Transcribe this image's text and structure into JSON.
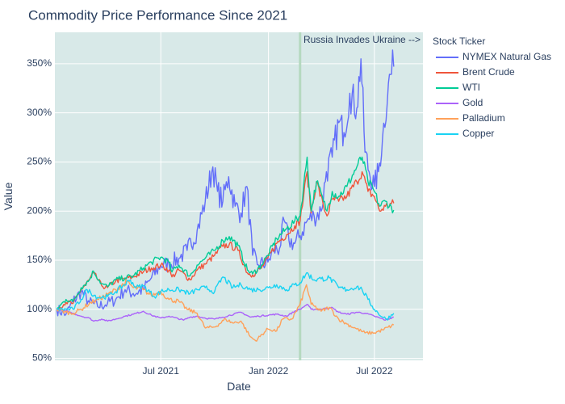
{
  "chart_data": {
    "type": "line",
    "title": "Commodity Price Performance Since 2021",
    "xlabel": "Date",
    "ylabel": "Value",
    "x_range": [
      "2021-01-01",
      "2022-09-22"
    ],
    "ylim": [
      0.48,
      3.82
    ],
    "x_ticks": [
      {
        "date": "2021-07-01",
        "label": "Jul 2021"
      },
      {
        "date": "2022-01-01",
        "label": "Jan 2022"
      },
      {
        "date": "2022-07-01",
        "label": "Jul 2022"
      }
    ],
    "y_ticks": [
      {
        "value": 0.5,
        "label": "50%"
      },
      {
        "value": 1.0,
        "label": "100%"
      },
      {
        "value": 1.5,
        "label": "150%"
      },
      {
        "value": 2.0,
        "label": "200%"
      },
      {
        "value": 2.5,
        "label": "250%"
      },
      {
        "value": 3.0,
        "label": "300%"
      },
      {
        "value": 3.5,
        "label": "350%"
      }
    ],
    "grid": true,
    "plot_background": "#d8e9e8",
    "legend": {
      "title": "Stock Ticker",
      "placement": "right"
    },
    "annotation": {
      "date": "2022-02-24",
      "text": "Russia Invades Ukraine  -->",
      "line_color": "#b5d9bf"
    },
    "series": [
      {
        "name": "NYMEX Natural Gas",
        "color": "#636efa",
        "points": [
          [
            "2021-01-04",
            1.0
          ],
          [
            "2021-01-20",
            0.95
          ],
          [
            "2021-02-01",
            1.08
          ],
          [
            "2021-02-15",
            1.18
          ],
          [
            "2021-03-01",
            1.07
          ],
          [
            "2021-03-15",
            1.03
          ],
          [
            "2021-04-01",
            1.06
          ],
          [
            "2021-04-15",
            1.1
          ],
          [
            "2021-05-01",
            1.2
          ],
          [
            "2021-05-15",
            1.16
          ],
          [
            "2021-06-01",
            1.2
          ],
          [
            "2021-06-15",
            1.32
          ],
          [
            "2021-07-01",
            1.45
          ],
          [
            "2021-07-15",
            1.46
          ],
          [
            "2021-08-01",
            1.52
          ],
          [
            "2021-08-15",
            1.6
          ],
          [
            "2021-09-01",
            1.8
          ],
          [
            "2021-09-15",
            2.1
          ],
          [
            "2021-09-28",
            2.45
          ],
          [
            "2021-10-06",
            2.2
          ],
          [
            "2021-10-15",
            2.1
          ],
          [
            "2021-10-25",
            2.35
          ],
          [
            "2021-11-05",
            2.05
          ],
          [
            "2021-11-15",
            1.98
          ],
          [
            "2021-11-25",
            2.25
          ],
          [
            "2021-12-05",
            1.55
          ],
          [
            "2021-12-15",
            1.45
          ],
          [
            "2021-12-31",
            1.48
          ],
          [
            "2022-01-10",
            1.6
          ],
          [
            "2022-01-20",
            1.62
          ],
          [
            "2022-01-28",
            1.9
          ],
          [
            "2022-02-05",
            1.7
          ],
          [
            "2022-02-15",
            1.67
          ],
          [
            "2022-02-24",
            1.75
          ],
          [
            "2022-03-08",
            1.9
          ],
          [
            "2022-03-20",
            1.95
          ],
          [
            "2022-04-01",
            2.0
          ],
          [
            "2022-04-10",
            2.4
          ],
          [
            "2022-04-20",
            2.55
          ],
          [
            "2022-05-01",
            2.9
          ],
          [
            "2022-05-10",
            2.8
          ],
          [
            "2022-05-20",
            3.2
          ],
          [
            "2022-06-01",
            3.05
          ],
          [
            "2022-06-08",
            3.55
          ],
          [
            "2022-06-15",
            2.6
          ],
          [
            "2022-06-22",
            2.4
          ],
          [
            "2022-07-01",
            2.25
          ],
          [
            "2022-07-08",
            2.4
          ],
          [
            "2022-07-15",
            2.75
          ],
          [
            "2022-07-25",
            3.3
          ],
          [
            "2022-08-03",
            3.47
          ]
        ]
      },
      {
        "name": "Brent Crude",
        "color": "#ef553b",
        "points": [
          [
            "2021-01-04",
            1.0
          ],
          [
            "2021-01-20",
            1.07
          ],
          [
            "2021-02-01",
            1.06
          ],
          [
            "2021-02-15",
            1.2
          ],
          [
            "2021-03-01",
            1.3
          ],
          [
            "2021-03-08",
            1.37
          ],
          [
            "2021-03-22",
            1.24
          ],
          [
            "2021-04-01",
            1.22
          ],
          [
            "2021-04-15",
            1.29
          ],
          [
            "2021-05-01",
            1.31
          ],
          [
            "2021-05-15",
            1.33
          ],
          [
            "2021-06-01",
            1.38
          ],
          [
            "2021-06-15",
            1.42
          ],
          [
            "2021-07-01",
            1.45
          ],
          [
            "2021-07-15",
            1.4
          ],
          [
            "2021-07-20",
            1.33
          ],
          [
            "2021-08-01",
            1.4
          ],
          [
            "2021-08-20",
            1.3
          ],
          [
            "2021-09-01",
            1.4
          ],
          [
            "2021-09-15",
            1.46
          ],
          [
            "2021-10-01",
            1.55
          ],
          [
            "2021-10-15",
            1.64
          ],
          [
            "2021-10-26",
            1.66
          ],
          [
            "2021-11-10",
            1.6
          ],
          [
            "2021-11-26",
            1.37
          ],
          [
            "2021-12-05",
            1.35
          ],
          [
            "2021-12-20",
            1.42
          ],
          [
            "2021-12-31",
            1.52
          ],
          [
            "2022-01-15",
            1.67
          ],
          [
            "2022-02-01",
            1.76
          ],
          [
            "2022-02-15",
            1.85
          ],
          [
            "2022-02-24",
            1.9
          ],
          [
            "2022-03-08",
            2.4
          ],
          [
            "2022-03-15",
            1.98
          ],
          [
            "2022-03-24",
            2.3
          ],
          [
            "2022-04-05",
            2.05
          ],
          [
            "2022-04-11",
            1.95
          ],
          [
            "2022-04-20",
            2.12
          ],
          [
            "2022-05-01",
            2.1
          ],
          [
            "2022-05-15",
            2.15
          ],
          [
            "2022-06-01",
            2.3
          ],
          [
            "2022-06-10",
            2.4
          ],
          [
            "2022-06-20",
            2.2
          ],
          [
            "2022-07-01",
            2.15
          ],
          [
            "2022-07-10",
            2.0
          ],
          [
            "2022-07-20",
            2.05
          ],
          [
            "2022-08-03",
            2.08
          ]
        ]
      },
      {
        "name": "WTI",
        "color": "#00cc96",
        "points": [
          [
            "2021-01-04",
            1.0
          ],
          [
            "2021-01-20",
            1.1
          ],
          [
            "2021-02-01",
            1.08
          ],
          [
            "2021-02-15",
            1.22
          ],
          [
            "2021-03-01",
            1.3
          ],
          [
            "2021-03-08",
            1.39
          ],
          [
            "2021-03-22",
            1.26
          ],
          [
            "2021-04-01",
            1.23
          ],
          [
            "2021-04-15",
            1.3
          ],
          [
            "2021-05-01",
            1.32
          ],
          [
            "2021-05-15",
            1.34
          ],
          [
            "2021-06-01",
            1.42
          ],
          [
            "2021-06-15",
            1.48
          ],
          [
            "2021-07-01",
            1.53
          ],
          [
            "2021-07-15",
            1.48
          ],
          [
            "2021-07-20",
            1.38
          ],
          [
            "2021-08-01",
            1.45
          ],
          [
            "2021-08-20",
            1.34
          ],
          [
            "2021-09-01",
            1.45
          ],
          [
            "2021-09-15",
            1.52
          ],
          [
            "2021-10-01",
            1.6
          ],
          [
            "2021-10-15",
            1.7
          ],
          [
            "2021-10-26",
            1.74
          ],
          [
            "2021-11-10",
            1.65
          ],
          [
            "2021-11-26",
            1.4
          ],
          [
            "2021-12-05",
            1.36
          ],
          [
            "2021-12-20",
            1.45
          ],
          [
            "2021-12-31",
            1.55
          ],
          [
            "2022-01-15",
            1.72
          ],
          [
            "2022-02-01",
            1.82
          ],
          [
            "2022-02-15",
            1.9
          ],
          [
            "2022-02-24",
            1.95
          ],
          [
            "2022-03-08",
            2.55
          ],
          [
            "2022-03-15",
            2.0
          ],
          [
            "2022-03-24",
            2.3
          ],
          [
            "2022-04-05",
            2.1
          ],
          [
            "2022-04-11",
            2.0
          ],
          [
            "2022-04-20",
            2.2
          ],
          [
            "2022-05-01",
            2.15
          ],
          [
            "2022-05-15",
            2.25
          ],
          [
            "2022-06-01",
            2.45
          ],
          [
            "2022-06-10",
            2.55
          ],
          [
            "2022-06-20",
            2.3
          ],
          [
            "2022-07-01",
            2.2
          ],
          [
            "2022-07-10",
            2.05
          ],
          [
            "2022-07-20",
            2.1
          ],
          [
            "2022-08-03",
            2.01
          ]
        ]
      },
      {
        "name": "Gold",
        "color": "#ab63fa",
        "points": [
          [
            "2021-01-04",
            1.0
          ],
          [
            "2021-01-20",
            0.98
          ],
          [
            "2021-02-01",
            0.96
          ],
          [
            "2021-02-15",
            0.93
          ],
          [
            "2021-03-01",
            0.91
          ],
          [
            "2021-03-08",
            0.88
          ],
          [
            "2021-03-22",
            0.9
          ],
          [
            "2021-04-01",
            0.88
          ],
          [
            "2021-04-15",
            0.9
          ],
          [
            "2021-05-01",
            0.93
          ],
          [
            "2021-05-15",
            0.95
          ],
          [
            "2021-06-01",
            0.98
          ],
          [
            "2021-06-15",
            0.94
          ],
          [
            "2021-07-01",
            0.91
          ],
          [
            "2021-07-15",
            0.93
          ],
          [
            "2021-08-09",
            0.89
          ],
          [
            "2021-08-20",
            0.92
          ],
          [
            "2021-09-01",
            0.93
          ],
          [
            "2021-09-15",
            0.91
          ],
          [
            "2021-10-01",
            0.9
          ],
          [
            "2021-10-15",
            0.92
          ],
          [
            "2021-11-15",
            0.97
          ],
          [
            "2021-12-01",
            0.92
          ],
          [
            "2021-12-15",
            0.93
          ],
          [
            "2022-01-15",
            0.95
          ],
          [
            "2022-02-01",
            0.93
          ],
          [
            "2022-02-15",
            0.98
          ],
          [
            "2022-02-24",
            1.0
          ],
          [
            "2022-03-08",
            1.05
          ],
          [
            "2022-03-15",
            1.0
          ],
          [
            "2022-04-01",
            1.0
          ],
          [
            "2022-04-18",
            1.02
          ],
          [
            "2022-05-01",
            0.97
          ],
          [
            "2022-05-15",
            0.95
          ],
          [
            "2022-06-01",
            0.97
          ],
          [
            "2022-06-15",
            0.96
          ],
          [
            "2022-07-01",
            0.93
          ],
          [
            "2022-07-20",
            0.89
          ],
          [
            "2022-08-03",
            0.92
          ]
        ]
      },
      {
        "name": "Palladium",
        "color": "#ffa15a",
        "points": [
          [
            "2021-01-04",
            1.0
          ],
          [
            "2021-01-20",
            0.97
          ],
          [
            "2021-02-01",
            0.96
          ],
          [
            "2021-02-15",
            1.0
          ],
          [
            "2021-03-01",
            1.06
          ],
          [
            "2021-03-15",
            1.1
          ],
          [
            "2021-04-01",
            1.15
          ],
          [
            "2021-04-15",
            1.2
          ],
          [
            "2021-05-04",
            1.28
          ],
          [
            "2021-05-15",
            1.22
          ],
          [
            "2021-06-01",
            1.2
          ],
          [
            "2021-06-15",
            1.14
          ],
          [
            "2021-07-01",
            1.18
          ],
          [
            "2021-07-15",
            1.1
          ],
          [
            "2021-08-01",
            1.08
          ],
          [
            "2021-08-15",
            1.0
          ],
          [
            "2021-09-01",
            0.96
          ],
          [
            "2021-09-15",
            0.81
          ],
          [
            "2021-10-01",
            0.82
          ],
          [
            "2021-10-20",
            0.9
          ],
          [
            "2021-11-01",
            0.86
          ],
          [
            "2021-11-15",
            0.88
          ],
          [
            "2021-12-01",
            0.72
          ],
          [
            "2021-12-10",
            0.68
          ],
          [
            "2021-12-31",
            0.8
          ],
          [
            "2022-01-15",
            0.78
          ],
          [
            "2022-01-25",
            0.9
          ],
          [
            "2022-02-10",
            0.9
          ],
          [
            "2022-02-24",
            1.05
          ],
          [
            "2022-03-07",
            1.25
          ],
          [
            "2022-03-15",
            1.05
          ],
          [
            "2022-04-01",
            0.98
          ],
          [
            "2022-04-15",
            1.02
          ],
          [
            "2022-05-01",
            0.9
          ],
          [
            "2022-05-15",
            0.85
          ],
          [
            "2022-06-01",
            0.8
          ],
          [
            "2022-06-15",
            0.76
          ],
          [
            "2022-07-01",
            0.76
          ],
          [
            "2022-07-15",
            0.79
          ],
          [
            "2022-08-03",
            0.84
          ]
        ]
      },
      {
        "name": "Copper",
        "color": "#19d3f3",
        "points": [
          [
            "2021-01-04",
            1.0
          ],
          [
            "2021-01-20",
            1.0
          ],
          [
            "2021-02-01",
            1.0
          ],
          [
            "2021-02-15",
            1.1
          ],
          [
            "2021-02-25",
            1.2
          ],
          [
            "2021-03-15",
            1.12
          ],
          [
            "2021-04-01",
            1.13
          ],
          [
            "2021-04-15",
            1.18
          ],
          [
            "2021-05-10",
            1.3
          ],
          [
            "2021-05-20",
            1.22
          ],
          [
            "2021-06-01",
            1.24
          ],
          [
            "2021-06-20",
            1.13
          ],
          [
            "2021-07-01",
            1.18
          ],
          [
            "2021-07-15",
            1.2
          ],
          [
            "2021-08-01",
            1.2
          ],
          [
            "2021-08-20",
            1.16
          ],
          [
            "2021-09-01",
            1.2
          ],
          [
            "2021-09-15",
            1.22
          ],
          [
            "2021-10-01",
            1.18
          ],
          [
            "2021-10-15",
            1.33
          ],
          [
            "2021-11-01",
            1.22
          ],
          [
            "2021-11-15",
            1.25
          ],
          [
            "2021-12-01",
            1.2
          ],
          [
            "2021-12-15",
            1.2
          ],
          [
            "2022-01-01",
            1.22
          ],
          [
            "2022-01-15",
            1.25
          ],
          [
            "2022-02-01",
            1.2
          ],
          [
            "2022-02-15",
            1.25
          ],
          [
            "2022-02-24",
            1.27
          ],
          [
            "2022-03-07",
            1.37
          ],
          [
            "2022-03-20",
            1.3
          ],
          [
            "2022-04-01",
            1.31
          ],
          [
            "2022-04-15",
            1.32
          ],
          [
            "2022-05-01",
            1.22
          ],
          [
            "2022-05-15",
            1.2
          ],
          [
            "2022-06-01",
            1.23
          ],
          [
            "2022-06-10",
            1.2
          ],
          [
            "2022-06-20",
            1.1
          ],
          [
            "2022-07-01",
            1.0
          ],
          [
            "2022-07-15",
            0.92
          ],
          [
            "2022-07-22",
            0.9
          ],
          [
            "2022-08-03",
            0.96
          ]
        ]
      }
    ]
  }
}
